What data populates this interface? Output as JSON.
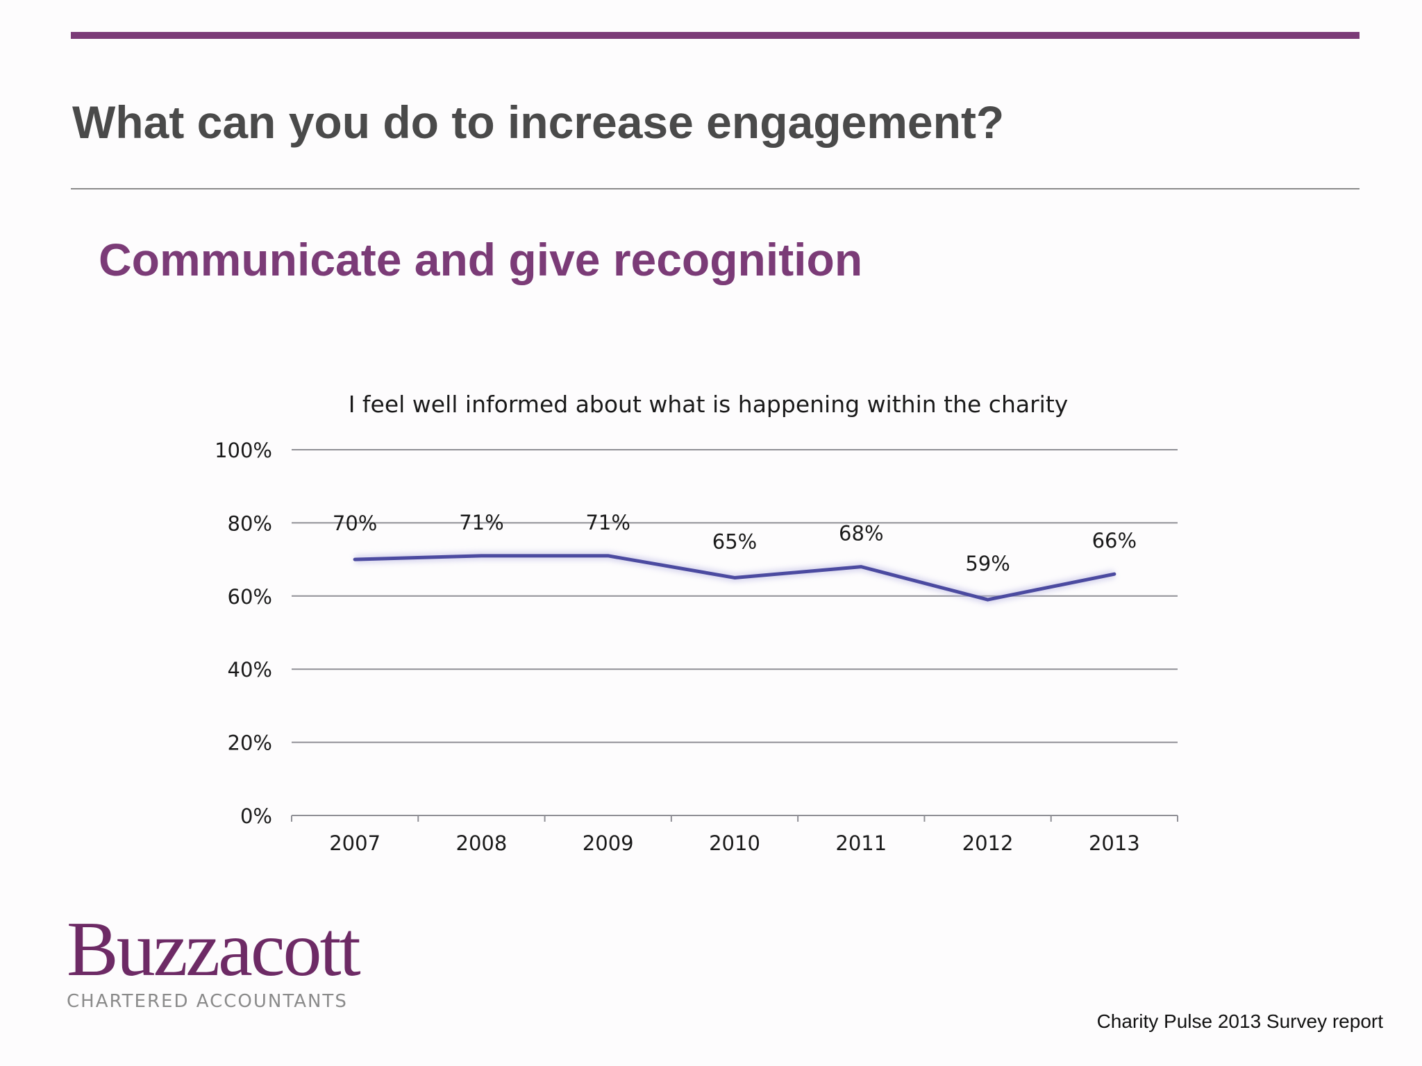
{
  "slide": {
    "title": "What can you do to increase engagement?",
    "subtitle": "Communicate and give recognition",
    "footer": "Charity Pulse 2013 Survey report"
  },
  "logo": {
    "name": "Buzzacott",
    "tagline": "CHARTERED ACCOUNTANTS"
  },
  "colors": {
    "accent": "#7b3b77",
    "line": "#4b4aa0",
    "title_text": "#4a4a4a"
  },
  "chart_data": {
    "type": "line",
    "title": "I feel well informed about what is happening within the charity",
    "x": [
      "2007",
      "2008",
      "2009",
      "2010",
      "2011",
      "2012",
      "2013"
    ],
    "series": [
      {
        "values": [
          70,
          71,
          71,
          65,
          68,
          59,
          66
        ]
      }
    ],
    "data_labels": [
      "70%",
      "71%",
      "71%",
      "65%",
      "68%",
      "59%",
      "66%"
    ],
    "y_ticks": [
      "0%",
      "20%",
      "40%",
      "60%",
      "80%",
      "100%"
    ],
    "ylim": [
      0,
      100
    ],
    "grid": true,
    "legend": "none"
  }
}
